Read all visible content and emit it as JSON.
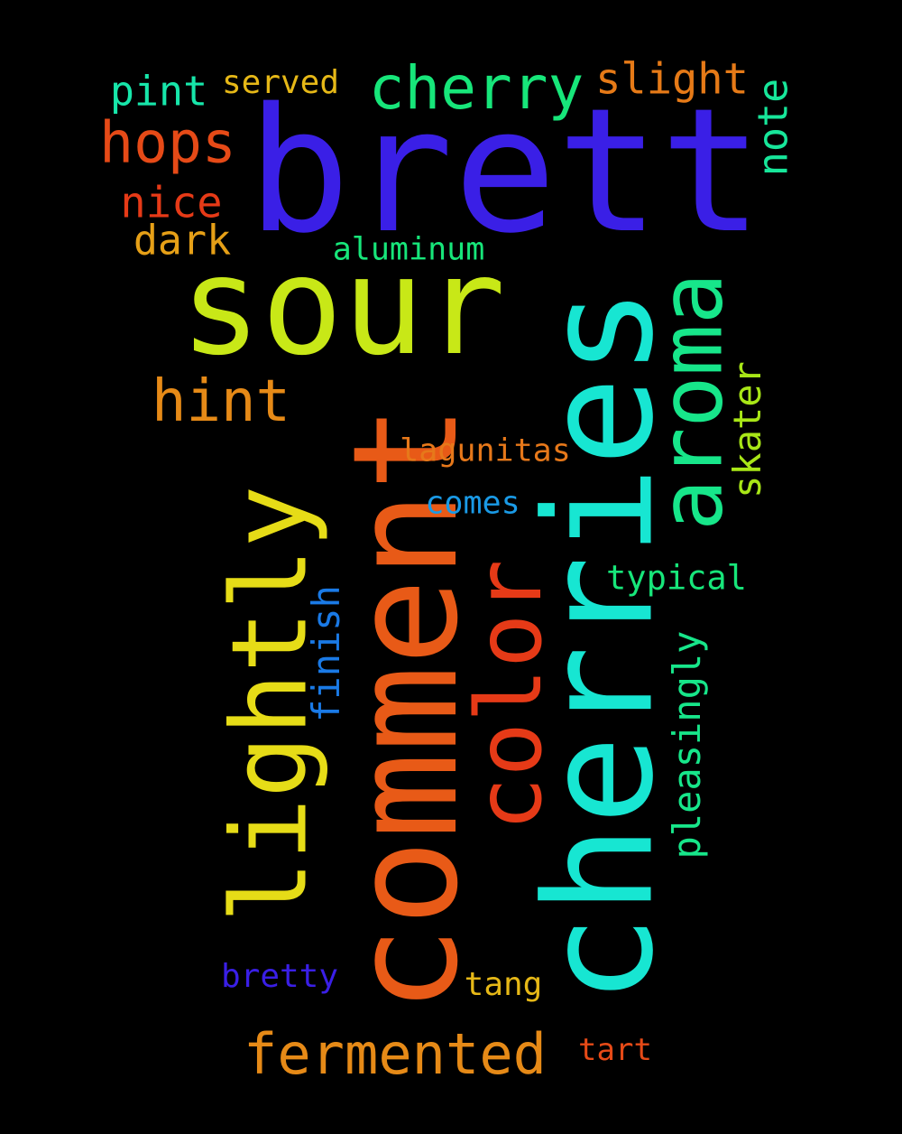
{
  "words": {
    "brett": {
      "text": "brett",
      "color": "#3a1fe6"
    },
    "sour": {
      "text": "sour",
      "color": "#c8e817"
    },
    "cherries": {
      "text": "cherries",
      "color": "#17e6d2"
    },
    "comment": {
      "text": "comment",
      "color": "#e85a17"
    },
    "lightly": {
      "text": "lightly",
      "color": "#e6dc17"
    },
    "aroma": {
      "text": "aroma",
      "color": "#17e68a"
    },
    "color": {
      "text": "color",
      "color": "#e63a17"
    },
    "cherry": {
      "text": "cherry",
      "color": "#17e67a"
    },
    "hops": {
      "text": "hops",
      "color": "#e64a17"
    },
    "hint": {
      "text": "hint",
      "color": "#e68a17"
    },
    "fermented": {
      "text": "fermented",
      "color": "#e68a17"
    },
    "slight": {
      "text": "slight",
      "color": "#e67a17"
    },
    "pint": {
      "text": "pint",
      "color": "#17e6aa"
    },
    "nice": {
      "text": "nice",
      "color": "#e63a17"
    },
    "dark": {
      "text": "dark",
      "color": "#e6a017"
    },
    "served": {
      "text": "served",
      "color": "#e6b817"
    },
    "note": {
      "text": "note",
      "color": "#17e69a"
    },
    "aluminum": {
      "text": "aluminum",
      "color": "#17e67a"
    },
    "skater": {
      "text": "skater",
      "color": "#a8e617"
    },
    "lagunitas": {
      "text": "lagunitas",
      "color": "#e6781a"
    },
    "comes": {
      "text": "comes",
      "color": "#1a9ae6"
    },
    "typical": {
      "text": "typical",
      "color": "#17e67a"
    },
    "pleasingly": {
      "text": "pleasingly",
      "color": "#17e68a"
    },
    "finish": {
      "text": "finish",
      "color": "#1a7ae6"
    },
    "bretty": {
      "text": "bretty",
      "color": "#3a1fe6"
    },
    "tang": {
      "text": "tang",
      "color": "#e6b817"
    },
    "tart": {
      "text": "tart",
      "color": "#e64a17"
    }
  }
}
